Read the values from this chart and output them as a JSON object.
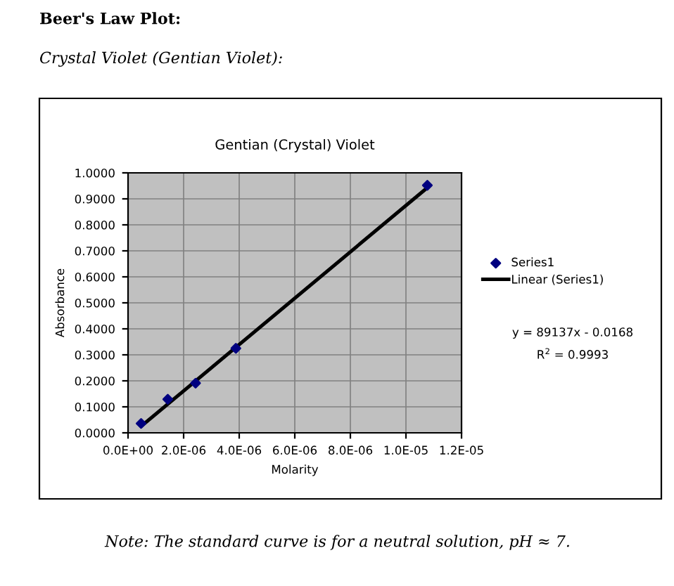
{
  "chart_data": {
    "type": "scatter",
    "title": "Gentian (Crystal) Violet",
    "xlabel": "Molarity",
    "ylabel": "Absorbance",
    "annotations": [
      "Beer's Law Plot:",
      "Crystal Violet (Gentian Violet):",
      "y = 89137x - 0.0168",
      "R$^{2}$ = 0.9993",
      "Note: The standard curve is for a neutral solution, pH ≈ 7."
    ],
    "series": [
      {
        "name": "Series1",
        "color": "#000080",
        "marker": "diamond",
        "x": [
          4.7e-07,
          1.43e-06,
          2.43e-06,
          3.88e-06,
          1.077e-05
        ],
        "values": [
          0.036,
          0.129,
          0.191,
          0.325,
          0.952
        ]
      },
      {
        "name": "Linear (Series1)",
        "type": "line",
        "color": "#000000",
        "line_style": "solid",
        "x": [
          4.7e-07,
          1.077e-05
        ],
        "values": [
          0.025,
          0.943
        ]
      }
    ],
    "xlim": [
      0,
      1.2e-05
    ],
    "ylim": [
      0,
      1.0
    ],
    "xticks": [
      {
        "value": 0,
        "label": "0.0E+00"
      },
      {
        "value": 2e-06,
        "label": "2.0E-06"
      },
      {
        "value": 4e-06,
        "label": "4.0E-06"
      },
      {
        "value": 6e-06,
        "label": "6.0E-06"
      },
      {
        "value": 8e-06,
        "label": "8.0E-06"
      },
      {
        "value": 1e-05,
        "label": "1.0E-05"
      },
      {
        "value": 1.2e-05,
        "label": "1.2E-05"
      }
    ],
    "yticks": [
      {
        "value": 0,
        "label": "0.0000"
      },
      {
        "value": 0.1,
        "label": "0.1000"
      },
      {
        "value": 0.2,
        "label": "0.2000"
      },
      {
        "value": 0.3,
        "label": "0.3000"
      },
      {
        "value": 0.4,
        "label": "0.4000"
      },
      {
        "value": 0.5,
        "label": "0.5000"
      },
      {
        "value": 0.6,
        "label": "0.6000"
      },
      {
        "value": 0.7,
        "label": "0.7000"
      },
      {
        "value": 0.8,
        "label": "0.8000"
      },
      {
        "value": 0.9,
        "label": "0.9000"
      },
      {
        "value": 1.0,
        "label": "1.0000"
      }
    ],
    "grid": true,
    "legend": "right"
  }
}
